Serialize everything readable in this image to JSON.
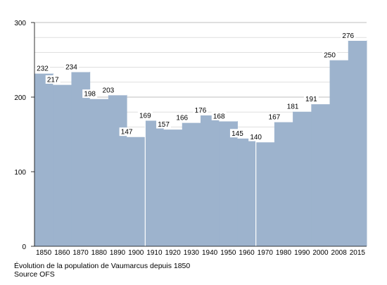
{
  "chart_data": {
    "type": "bar",
    "categories": [
      "1850",
      "1860",
      "1870",
      "1880",
      "1890",
      "1900",
      "1910",
      "1920",
      "1930",
      "1940",
      "1950",
      "1960",
      "1970",
      "1980",
      "1990",
      "2000",
      "2008",
      "2015"
    ],
    "values": [
      232,
      217,
      234,
      198,
      203,
      147,
      169,
      157,
      166,
      176,
      168,
      145,
      140,
      167,
      181,
      191,
      250,
      276
    ],
    "ylim": [
      0,
      300
    ],
    "yticks": [
      0,
      100,
      200,
      300
    ],
    "grid": true,
    "bar_color": "#9db3cd",
    "grid_color": "#cccccc",
    "separator_color": "#ffffff"
  },
  "caption": {
    "line1": "Évolution de la population de Vaumarcus depuis 1850",
    "line2": "Source OFS"
  }
}
